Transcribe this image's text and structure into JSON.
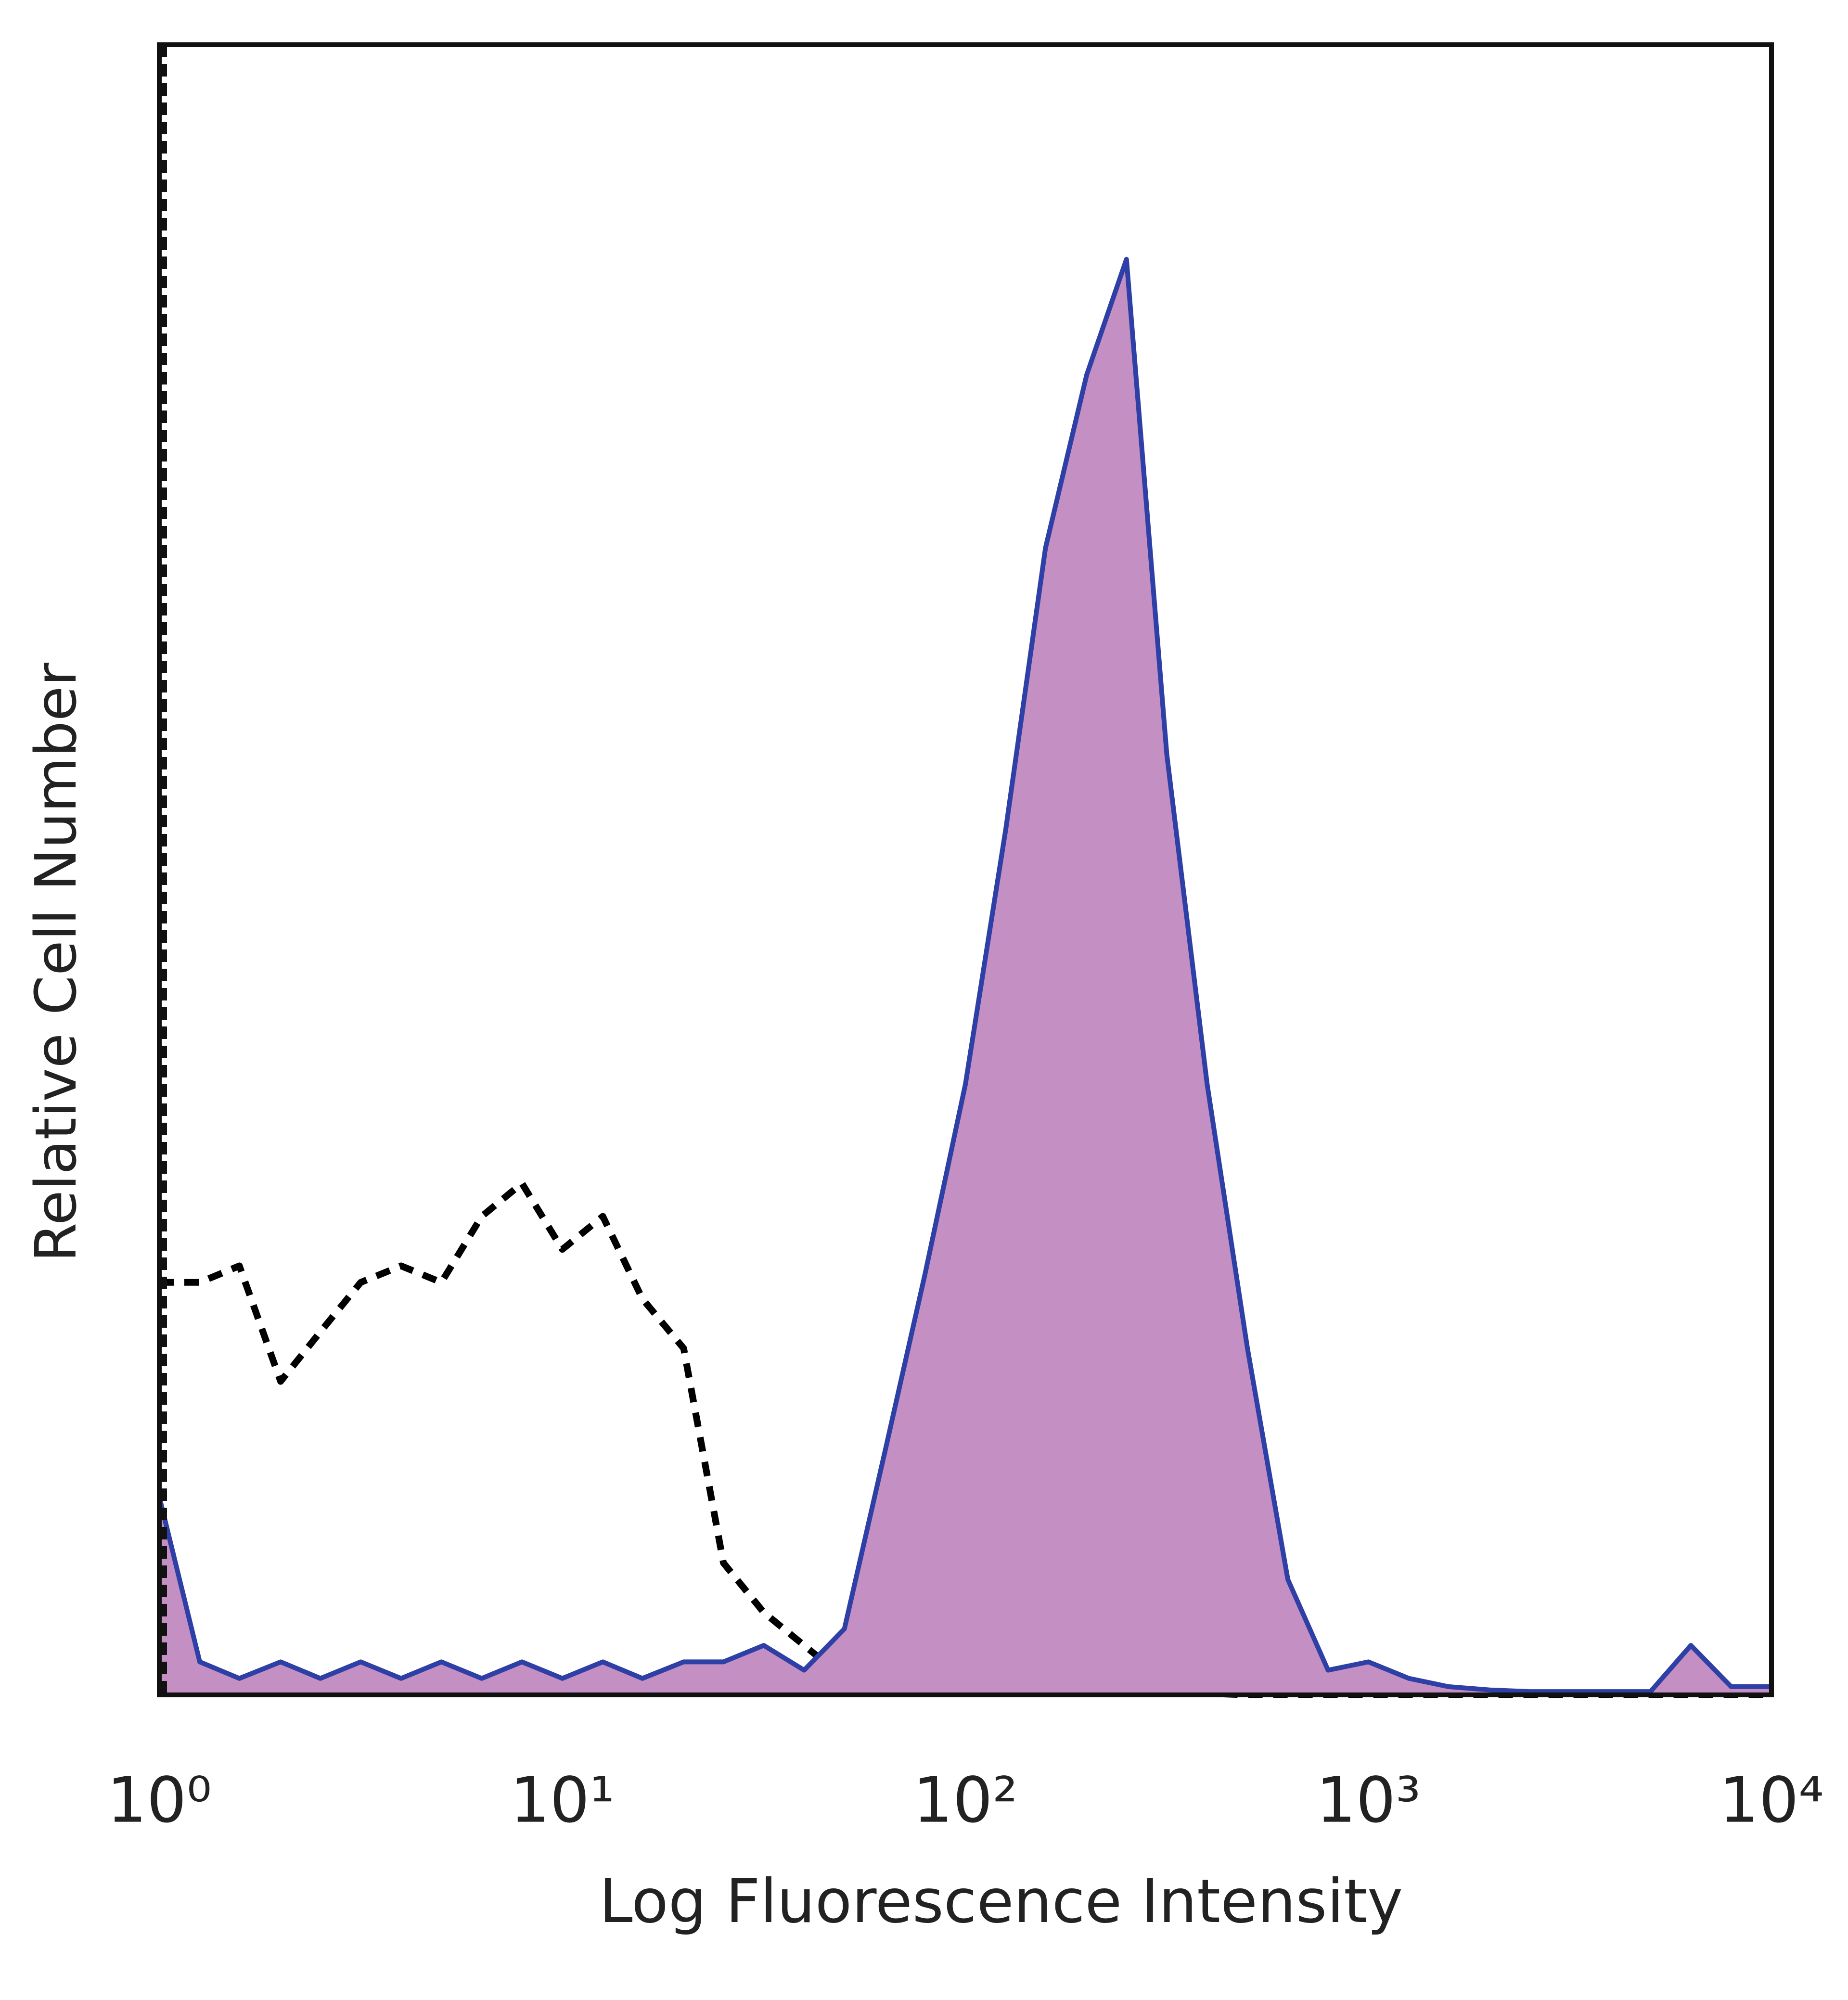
{
  "chart_data": {
    "type": "line",
    "xlabel": "Log Fluorescence Intensity",
    "ylabel": "Relative Cell Number",
    "xscale": "log",
    "xlim": [
      1,
      10000
    ],
    "ylim": [
      0,
      100
    ],
    "xticks": [
      {
        "value": 1,
        "label": "10⁰"
      },
      {
        "value": 10,
        "label": "10¹"
      },
      {
        "value": 100,
        "label": "10²"
      },
      {
        "value": 1000,
        "label": "10³"
      },
      {
        "value": 10000,
        "label": "10⁴"
      }
    ],
    "x": [
      1,
      1.26,
      1.58,
      2,
      2.51,
      3.16,
      3.98,
      5.01,
      6.31,
      7.94,
      10,
      12.6,
      15.8,
      20,
      25.1,
      31.6,
      39.8,
      50.1,
      63.1,
      79.4,
      100,
      126,
      158,
      200,
      251,
      316,
      398,
      501,
      631,
      794,
      1000,
      1260,
      1580,
      2000,
      2510,
      3160,
      3980,
      5010,
      6310,
      7940,
      10000
    ],
    "series": [
      {
        "color": "#000000",
        "dashed": true,
        "fill": null,
        "values": [
          25,
          25,
          26,
          19,
          22,
          25,
          26,
          25,
          29,
          31,
          27,
          29,
          24,
          21,
          8,
          5,
          3,
          1,
          0.5,
          0.3,
          0.3,
          0.2,
          0.2,
          0.1,
          0.1,
          0.1,
          0.1,
          0,
          0,
          0,
          0,
          0,
          0,
          0,
          0,
          0,
          0,
          0,
          0,
          0,
          0
        ]
      },
      {
        "color": "#2e3fa6",
        "dashed": false,
        "fill": "#c48fc2",
        "values": [
          12,
          2,
          1,
          2,
          1,
          2,
          1,
          2,
          1,
          2,
          1,
          2,
          1,
          2,
          2,
          3,
          1.5,
          4,
          14.7,
          25.5,
          37,
          52.5,
          69.5,
          80,
          87,
          57,
          37,
          21,
          7,
          1.5,
          2,
          1,
          0.5,
          0.3,
          0.2,
          0.2,
          0.2,
          0.2,
          3,
          0.5,
          0.5
        ]
      }
    ]
  }
}
